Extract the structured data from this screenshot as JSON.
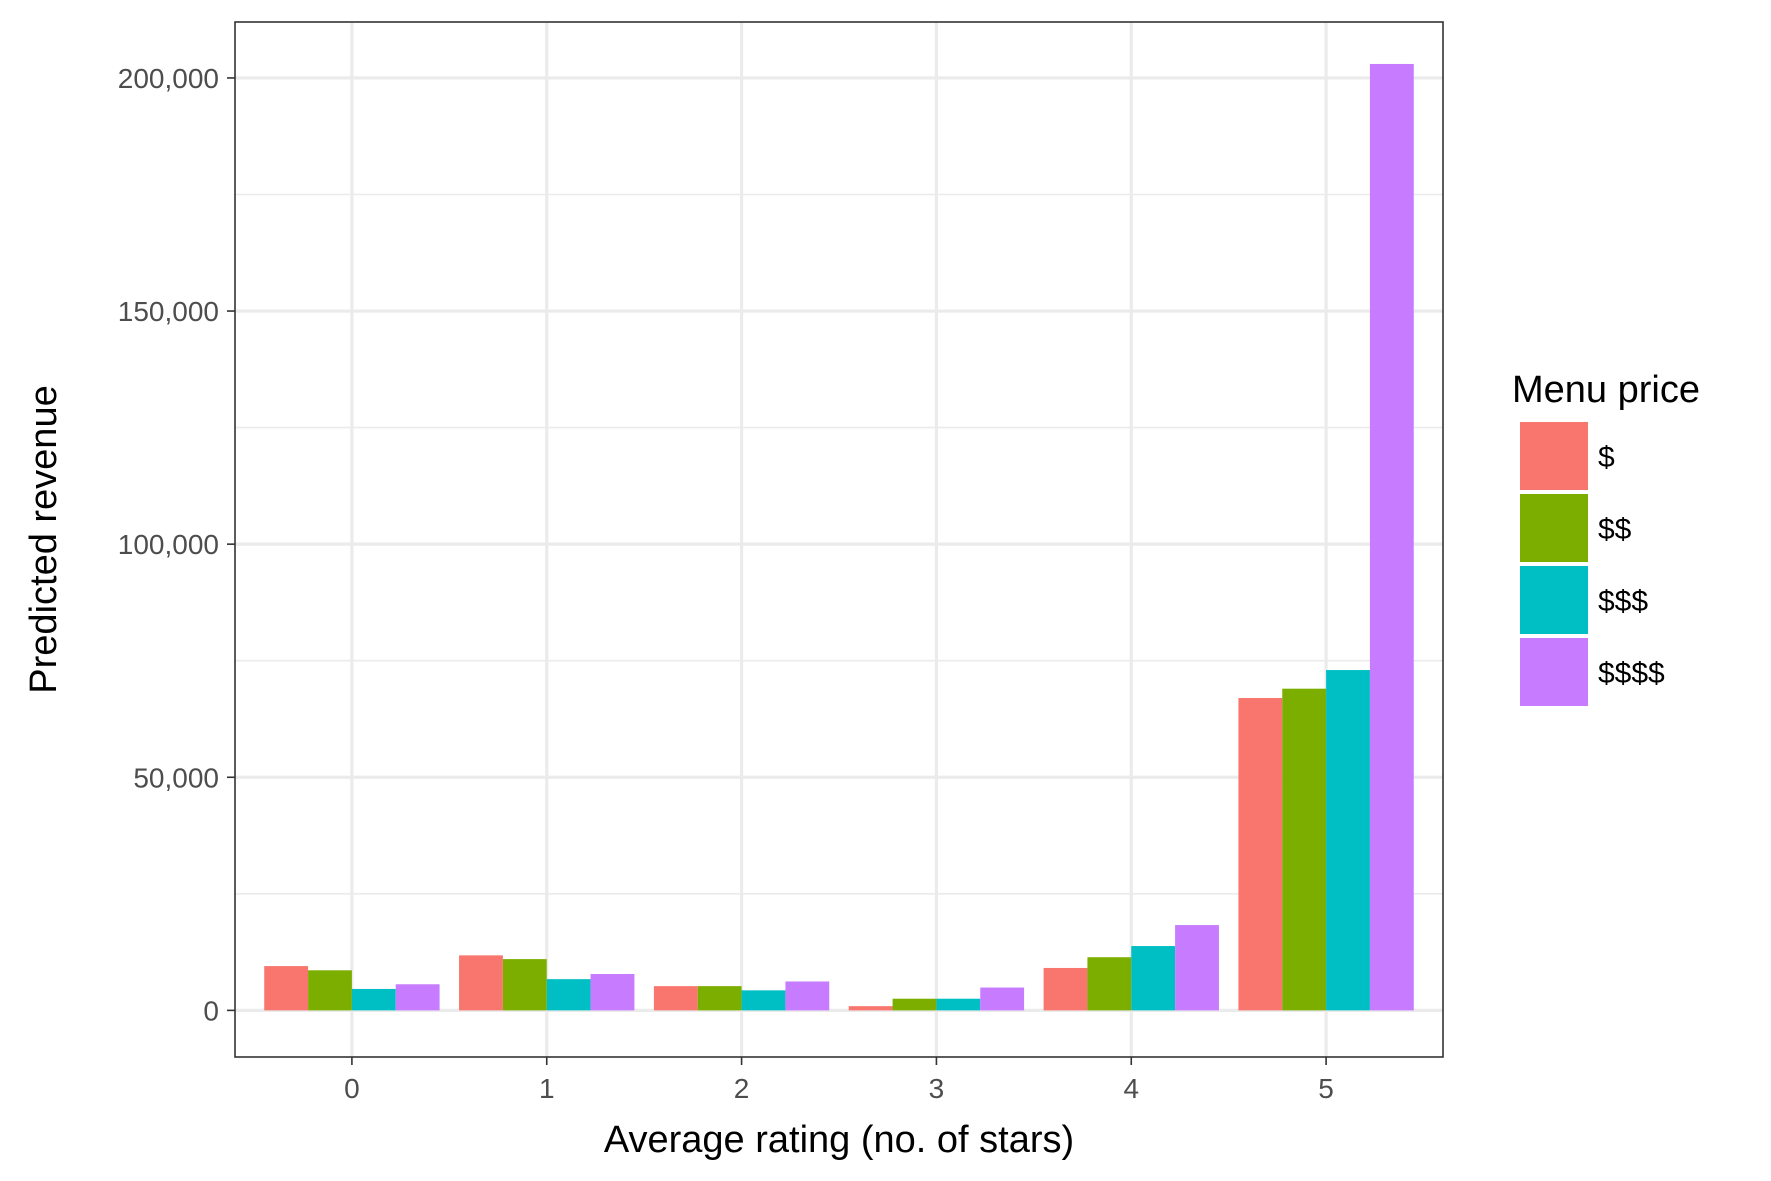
{
  "chart_data": {
    "type": "bar",
    "title": "",
    "xlabel": "Average rating (no. of stars)",
    "ylabel": "Predicted revenue",
    "categories": [
      "0",
      "1",
      "2",
      "3",
      "4",
      "5"
    ],
    "ylim": [
      -10000,
      212000
    ],
    "yticks": [
      0,
      50000,
      100000,
      150000,
      200000
    ],
    "ytick_labels": [
      "0",
      "50,000",
      "100,000",
      "150,000",
      "200,000"
    ],
    "grid": true,
    "legend": {
      "title": "Menu price",
      "position": "right"
    },
    "series": [
      {
        "name": "$",
        "color": "#F8766D",
        "values": [
          9500,
          11800,
          5200,
          900,
          9100,
          67000
        ]
      },
      {
        "name": "$$",
        "color": "#7CAE00",
        "values": [
          8600,
          11000,
          5200,
          2500,
          11400,
          69000
        ]
      },
      {
        "name": "$$$",
        "color": "#00BFC4",
        "values": [
          4600,
          6700,
          4300,
          2500,
          13800,
          73000
        ]
      },
      {
        "name": "$$$$",
        "color": "#C77CFF",
        "values": [
          5600,
          7800,
          6200,
          4900,
          18300,
          203000
        ]
      }
    ]
  }
}
